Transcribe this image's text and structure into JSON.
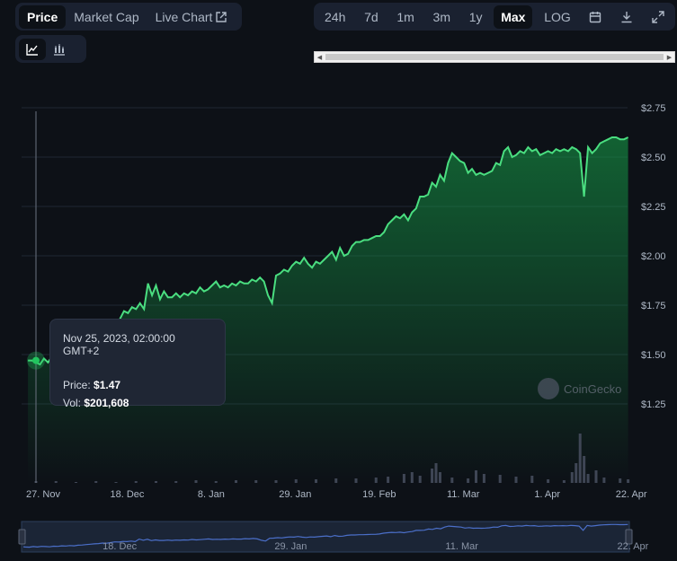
{
  "tabs": [
    {
      "label": "Price",
      "active": true
    },
    {
      "label": "Market Cap",
      "active": false
    },
    {
      "label": "Live Chart",
      "active": false
    }
  ],
  "chart_type_buttons": [
    {
      "icon": "line-chart-icon",
      "active": true
    },
    {
      "icon": "candlestick-chart-icon",
      "active": false
    }
  ],
  "ranges": [
    {
      "label": "24h",
      "active": false
    },
    {
      "label": "7d",
      "active": false
    },
    {
      "label": "1m",
      "active": false
    },
    {
      "label": "3m",
      "active": false
    },
    {
      "label": "1y",
      "active": false
    },
    {
      "label": "Max",
      "active": true
    },
    {
      "label": "LOG",
      "active": false
    }
  ],
  "toolbar_icons": [
    "calendar-icon",
    "download-icon",
    "expand-icon"
  ],
  "tooltip": {
    "date": "Nov 25, 2023, 02:00:00 GMT+2",
    "price_label": "Price:",
    "price_value": "$1.47",
    "vol_label": "Vol:",
    "vol_value": "$201,608"
  },
  "watermark": "CoinGecko",
  "colors": {
    "line": "#4ade80",
    "fill": "#16a34a",
    "background": "#0d1117",
    "panel": "#1a2130"
  },
  "chart_data": {
    "type": "area",
    "y_axis_ticks": [
      "$2.75",
      "$2.50",
      "$2.25",
      "$2.00",
      "$1.75",
      "$1.50",
      "$1.25"
    ],
    "y_tick_values": [
      2.75,
      2.5,
      2.25,
      2.0,
      1.75,
      1.5,
      1.25
    ],
    "ylim": [
      1.25,
      2.75
    ],
    "x_axis_ticks": [
      {
        "label": "27. Nov",
        "day": 0
      },
      {
        "label": "18. Dec",
        "day": 21
      },
      {
        "label": "8. Jan",
        "day": 42
      },
      {
        "label": "29. Jan",
        "day": 63
      },
      {
        "label": "19. Feb",
        "day": 84
      },
      {
        "label": "11. Mar",
        "day": 105
      },
      {
        "label": "1. Apr",
        "day": 126
      },
      {
        "label": "22. Apr",
        "day": 147
      }
    ],
    "navigator_ticks": [
      {
        "label": "18. Dec",
        "day": 21
      },
      {
        "label": "29. Jan",
        "day": 63
      },
      {
        "label": "11. Mar",
        "day": 105
      },
      {
        "label": "22. Apr",
        "day": 147
      }
    ],
    "price": [
      [
        -2,
        1.47
      ],
      [
        -1,
        1.47
      ],
      [
        0,
        1.46
      ],
      [
        1,
        1.45
      ],
      [
        2,
        1.48
      ],
      [
        3,
        1.46
      ],
      [
        4,
        1.49
      ],
      [
        5,
        1.48
      ],
      [
        6,
        1.47
      ],
      [
        7,
        1.5
      ],
      [
        8,
        1.49
      ],
      [
        9,
        1.52
      ],
      [
        10,
        1.51
      ],
      [
        11,
        1.53
      ],
      [
        12,
        1.52
      ],
      [
        13,
        1.55
      ],
      [
        14,
        1.56
      ],
      [
        15,
        1.58
      ],
      [
        16,
        1.6
      ],
      [
        17,
        1.62
      ],
      [
        18,
        1.63
      ],
      [
        19,
        1.66
      ],
      [
        20,
        1.65
      ],
      [
        21,
        1.68
      ],
      [
        22,
        1.72
      ],
      [
        23,
        1.71
      ],
      [
        24,
        1.74
      ],
      [
        25,
        1.73
      ],
      [
        26,
        1.76
      ],
      [
        27,
        1.73
      ],
      [
        28,
        1.86
      ],
      [
        29,
        1.8
      ],
      [
        30,
        1.85
      ],
      [
        31,
        1.78
      ],
      [
        32,
        1.82
      ],
      [
        33,
        1.79
      ],
      [
        34,
        1.79
      ],
      [
        35,
        1.81
      ],
      [
        36,
        1.79
      ],
      [
        37,
        1.81
      ],
      [
        38,
        1.8
      ],
      [
        39,
        1.82
      ],
      [
        40,
        1.81
      ],
      [
        41,
        1.84
      ],
      [
        42,
        1.82
      ],
      [
        43,
        1.83
      ],
      [
        44,
        1.85
      ],
      [
        45,
        1.87
      ],
      [
        46,
        1.84
      ],
      [
        47,
        1.85
      ],
      [
        48,
        1.84
      ],
      [
        49,
        1.86
      ],
      [
        50,
        1.85
      ],
      [
        51,
        1.87
      ],
      [
        52,
        1.86
      ],
      [
        53,
        1.86
      ],
      [
        54,
        1.88
      ],
      [
        55,
        1.87
      ],
      [
        56,
        1.89
      ],
      [
        57,
        1.87
      ],
      [
        58,
        1.8
      ],
      [
        59,
        1.76
      ],
      [
        60,
        1.9
      ],
      [
        61,
        1.91
      ],
      [
        62,
        1.93
      ],
      [
        63,
        1.92
      ],
      [
        64,
        1.95
      ],
      [
        65,
        1.97
      ],
      [
        66,
        1.96
      ],
      [
        67,
        1.99
      ],
      [
        68,
        1.96
      ],
      [
        69,
        1.94
      ],
      [
        70,
        1.97
      ],
      [
        71,
        1.96
      ],
      [
        72,
        1.98
      ],
      [
        73,
        2.0
      ],
      [
        74,
        2.02
      ],
      [
        75,
        1.98
      ],
      [
        76,
        2.04
      ],
      [
        77,
        2.0
      ],
      [
        78,
        2.01
      ],
      [
        79,
        2.05
      ],
      [
        80,
        2.07
      ],
      [
        81,
        2.07
      ],
      [
        82,
        2.08
      ],
      [
        83,
        2.08
      ],
      [
        84,
        2.09
      ],
      [
        85,
        2.1
      ],
      [
        86,
        2.1
      ],
      [
        87,
        2.12
      ],
      [
        88,
        2.16
      ],
      [
        89,
        2.18
      ],
      [
        90,
        2.2
      ],
      [
        91,
        2.19
      ],
      [
        92,
        2.21
      ],
      [
        93,
        2.18
      ],
      [
        94,
        2.22
      ],
      [
        95,
        2.24
      ],
      [
        96,
        2.3
      ],
      [
        97,
        2.3
      ],
      [
        98,
        2.31
      ],
      [
        99,
        2.37
      ],
      [
        100,
        2.35
      ],
      [
        101,
        2.41
      ],
      [
        102,
        2.38
      ],
      [
        103,
        2.47
      ],
      [
        104,
        2.52
      ],
      [
        105,
        2.5
      ],
      [
        106,
        2.48
      ],
      [
        107,
        2.47
      ],
      [
        108,
        2.42
      ],
      [
        109,
        2.44
      ],
      [
        110,
        2.41
      ],
      [
        111,
        2.42
      ],
      [
        112,
        2.41
      ],
      [
        113,
        2.42
      ],
      [
        114,
        2.43
      ],
      [
        115,
        2.47
      ],
      [
        116,
        2.46
      ],
      [
        117,
        2.53
      ],
      [
        118,
        2.55
      ],
      [
        119,
        2.5
      ],
      [
        120,
        2.51
      ],
      [
        121,
        2.53
      ],
      [
        122,
        2.52
      ],
      [
        123,
        2.55
      ],
      [
        124,
        2.53
      ],
      [
        125,
        2.54
      ],
      [
        126,
        2.51
      ],
      [
        127,
        2.52
      ],
      [
        128,
        2.53
      ],
      [
        129,
        2.52
      ],
      [
        130,
        2.54
      ],
      [
        131,
        2.53
      ],
      [
        132,
        2.54
      ],
      [
        133,
        2.53
      ],
      [
        134,
        2.55
      ],
      [
        135,
        2.54
      ],
      [
        136,
        2.52
      ],
      [
        137,
        2.3
      ],
      [
        138,
        2.55
      ],
      [
        139,
        2.52
      ],
      [
        140,
        2.54
      ],
      [
        141,
        2.57
      ],
      [
        142,
        2.58
      ],
      [
        143,
        2.59
      ],
      [
        144,
        2.6
      ],
      [
        145,
        2.6
      ],
      [
        146,
        2.59
      ],
      [
        147,
        2.59
      ],
      [
        148,
        2.6
      ]
    ],
    "volume_days": [
      [
        0,
        2
      ],
      [
        5,
        2
      ],
      [
        10,
        1
      ],
      [
        15,
        2
      ],
      [
        20,
        1
      ],
      [
        25,
        2
      ],
      [
        30,
        2
      ],
      [
        35,
        2
      ],
      [
        40,
        3
      ],
      [
        45,
        2
      ],
      [
        50,
        3
      ],
      [
        55,
        3
      ],
      [
        60,
        3
      ],
      [
        65,
        4
      ],
      [
        70,
        4
      ],
      [
        75,
        5
      ],
      [
        80,
        5
      ],
      [
        85,
        6
      ],
      [
        88,
        7
      ],
      [
        92,
        10
      ],
      [
        94,
        12
      ],
      [
        96,
        8
      ],
      [
        99,
        16
      ],
      [
        100,
        22
      ],
      [
        101,
        12
      ],
      [
        104,
        6
      ],
      [
        108,
        5
      ],
      [
        110,
        14
      ],
      [
        112,
        10
      ],
      [
        116,
        9
      ],
      [
        120,
        7
      ],
      [
        124,
        8
      ],
      [
        128,
        4
      ],
      [
        132,
        3
      ],
      [
        134,
        12
      ],
      [
        135,
        22
      ],
      [
        136,
        55
      ],
      [
        137,
        30
      ],
      [
        138,
        10
      ],
      [
        140,
        14
      ],
      [
        142,
        6
      ],
      [
        146,
        5
      ],
      [
        148,
        4
      ]
    ]
  }
}
